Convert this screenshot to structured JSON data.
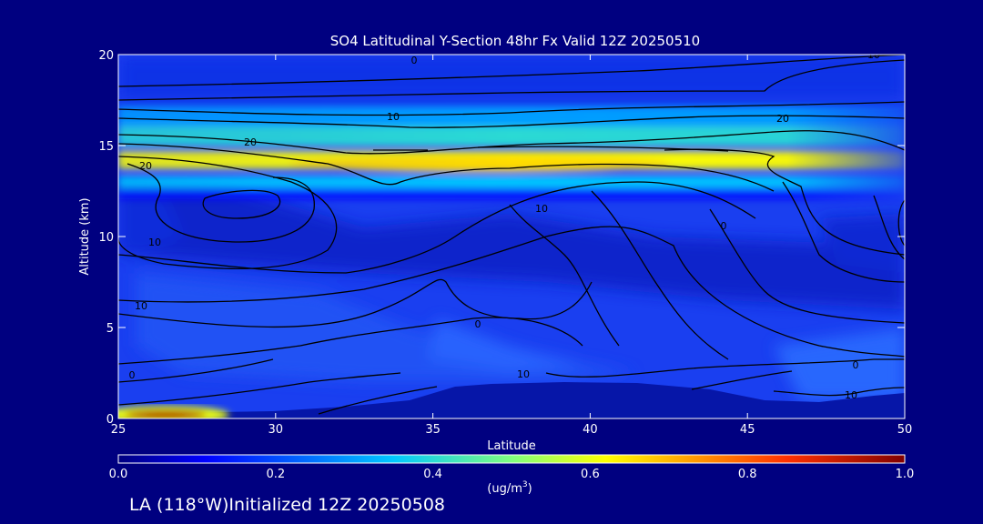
{
  "chart_data": {
    "type": "heatmap",
    "title": "SO4 Latitudinal Y-Section 48hr  Fx Valid 12Z 20250510",
    "xlabel": "Latitude",
    "ylabel": "Altitude (km)",
    "xlim": [
      25,
      50
    ],
    "ylim": [
      0,
      20
    ],
    "x_ticks": [
      "25",
      "30",
      "35",
      "40",
      "45",
      "50"
    ],
    "y_ticks": [
      "0",
      "5",
      "10",
      "15",
      "20"
    ],
    "colorbar": {
      "ticks": [
        "0.0",
        "0.2",
        "0.4",
        "0.6",
        "0.8",
        "1.0"
      ],
      "range": [
        0.0,
        1.0
      ],
      "unit_main": "(ug/m",
      "unit_sup": "3",
      "unit_end": ")"
    },
    "bands": [
      {
        "y": 16.6,
        "value": 0.3
      },
      {
        "y": 15.5,
        "value": 0.4
      },
      {
        "y": 14.2,
        "value": 0.62
      },
      {
        "y": 13.0,
        "value": 0.35
      },
      {
        "y": 12.3,
        "value": 0.12
      }
    ],
    "surface_hotspot": {
      "lat": 26.5,
      "alt": 0.2,
      "value": 0.95
    },
    "contour_labels": [
      "0",
      "10",
      "10",
      "20",
      "20",
      "20",
      "10",
      "10",
      "10",
      "0",
      "0",
      "0",
      "10",
      "0",
      "10"
    ]
  },
  "footer": {
    "text": "LA (118°W)Initialized 12Z 20250508"
  }
}
